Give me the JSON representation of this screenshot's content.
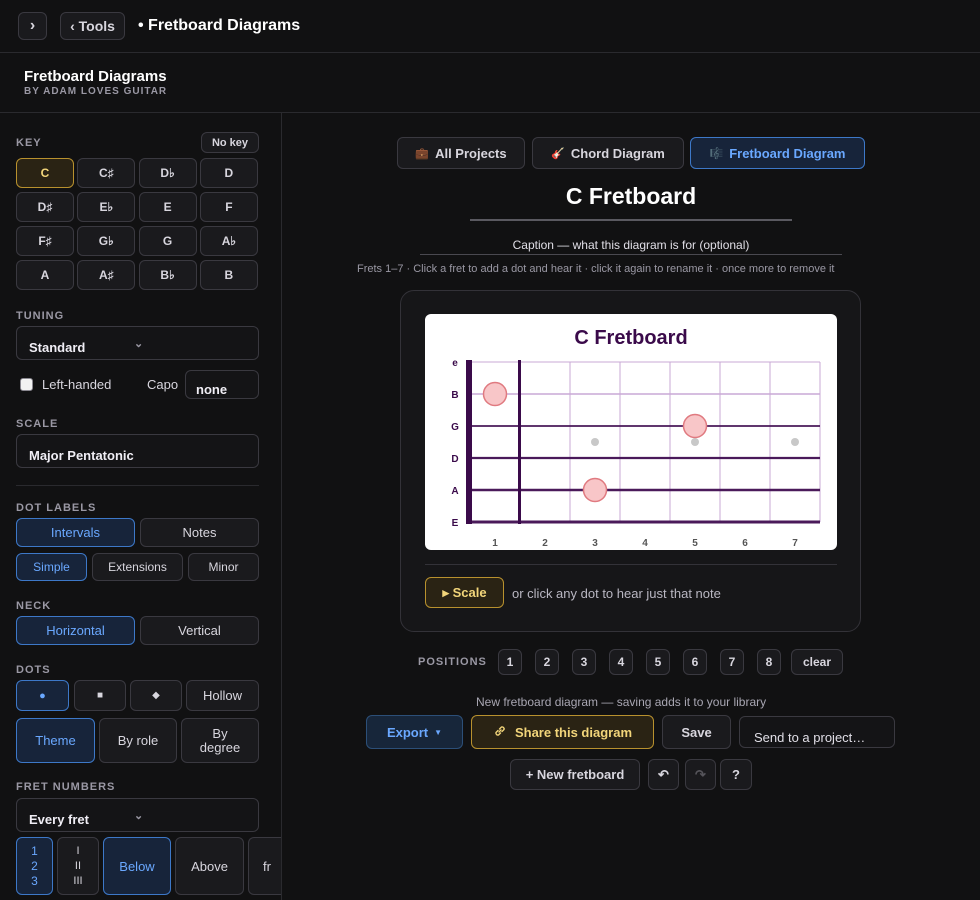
{
  "topbar": {
    "toggle_icon": "›",
    "tools_label": "‹ Tools",
    "breadcrumb": "• Fretboard Diagrams"
  },
  "header": {
    "app_name": "Fretboard Diagrams",
    "byline": "BY ADAM LOVES GUITAR"
  },
  "sidebar": {
    "key": {
      "label": "KEY",
      "no_key": "No key",
      "selected": "C",
      "options": [
        "C",
        "C♯",
        "D♭",
        "D",
        "D♯",
        "E♭",
        "E",
        "F",
        "F♯",
        "G♭",
        "G",
        "A♭",
        "A",
        "A♯",
        "B♭",
        "B"
      ]
    },
    "tuning": {
      "label": "TUNING",
      "value": "Standard"
    },
    "left_handed": {
      "label": "Left-handed",
      "checked": false
    },
    "capo": {
      "label": "Capo",
      "value": "none"
    },
    "scale": {
      "label": "SCALE",
      "value": "Major Pentatonic"
    },
    "dot_labels": {
      "label": "DOT LABELS",
      "modes": [
        "Intervals",
        "Notes"
      ],
      "selected_mode": "Intervals",
      "variants": [
        "Simple",
        "Extensions",
        "Minor"
      ],
      "selected_variant": "Simple"
    },
    "neck": {
      "label": "NECK",
      "options": [
        "Horizontal",
        "Vertical"
      ],
      "selected": "Horizontal"
    },
    "dots": {
      "label": "DOTS",
      "shapes": [
        "●",
        "■",
        "◆",
        "Hollow"
      ],
      "selected_shape": "●",
      "colors": [
        "Theme",
        "By role",
        "By degree"
      ],
      "selected_color": "Theme"
    },
    "fret_numbers": {
      "label": "FRET NUMBERS",
      "value": "Every fret",
      "styles": [
        "1\n2\n3",
        "I\nII\nIII"
      ],
      "selected_style": "1\n2\n3",
      "positions": [
        "Below",
        "Above",
        "fr"
      ],
      "selected_position": "Below"
    }
  },
  "main": {
    "tabs": [
      {
        "icon": "💼",
        "label": "All Projects"
      },
      {
        "icon": "🎸",
        "label": "Chord Diagram"
      },
      {
        "icon": "🎼",
        "label": "Fretboard Diagram"
      }
    ],
    "active_tab": "Fretboard Diagram",
    "title": "C Fretboard",
    "caption_placeholder": "Caption — what this diagram is for (optional)",
    "hint": "Frets 1–7 · Click a fret to add a dot and hear it · click it again to rename it · once more to remove it",
    "diagram": {
      "title": "C Fretboard",
      "strings": [
        "e",
        "B",
        "G",
        "D",
        "A",
        "E"
      ],
      "fret_numbers": [
        "1",
        "2",
        "3",
        "4",
        "5",
        "6",
        "7"
      ],
      "dots": [
        {
          "string": "B",
          "fret": 1
        },
        {
          "string": "G",
          "fret": 5
        },
        {
          "string": "A",
          "fret": 3
        }
      ],
      "inlays": [
        3,
        5,
        7
      ],
      "colors": {
        "title": "#3a0a4a",
        "lines": "#4a1a5a",
        "grid": "#c9a9d6",
        "dot_fill": "#f8c6c8",
        "dot_stroke": "#e07a80",
        "inlay": "#c8c8c8"
      }
    },
    "scale_button": "▸ Scale",
    "scale_hint": "or click any dot to hear just that note",
    "positions": {
      "label": "POSITIONS",
      "buttons": [
        "1",
        "2",
        "3",
        "4",
        "5",
        "6",
        "7",
        "8"
      ],
      "clear": "clear"
    },
    "save_note": "New fretboard diagram — saving adds it to your library",
    "export_label": "Export",
    "share_label": "Share this diagram",
    "save_label": "Save",
    "send_placeholder": "Send to a project…",
    "new_fretboard": "+ New fretboard",
    "undo_icon": "↶",
    "redo_icon": "↷",
    "help_label": "?"
  }
}
